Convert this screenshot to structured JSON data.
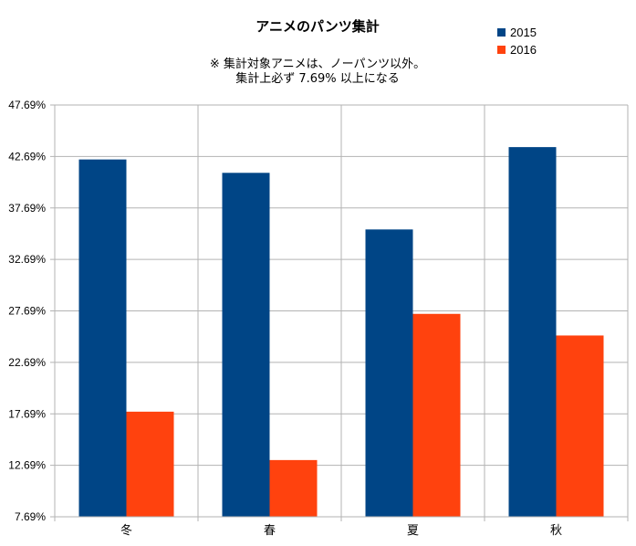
{
  "chart_data": {
    "type": "bar",
    "title": "アニメのパンツ集計",
    "subtitle_lines": [
      "※ 集計対象アニメは、ノーパンツ以外。",
      "集計上必ず 7.69% 以上になる"
    ],
    "categories": [
      "冬",
      "春",
      "夏",
      "秋"
    ],
    "series": [
      {
        "name": "2015",
        "color": "#004586",
        "values": [
          42.4,
          41.1,
          35.6,
          43.6
        ]
      },
      {
        "name": "2016",
        "color": "#ff420e",
        "values": [
          17.9,
          13.2,
          27.4,
          25.3
        ]
      }
    ],
    "y_ticks": [
      "7.69%",
      "12.69%",
      "17.69%",
      "22.69%",
      "27.69%",
      "32.69%",
      "37.69%",
      "42.69%",
      "47.69%"
    ],
    "ylim": [
      7.69,
      47.69
    ],
    "grid": true,
    "legend_position": "top-right"
  }
}
